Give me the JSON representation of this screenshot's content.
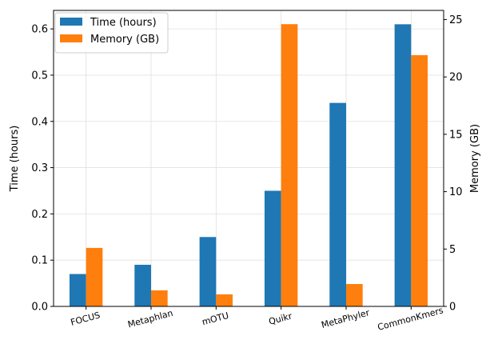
{
  "chart_data": {
    "type": "bar",
    "categories": [
      "FOCUS",
      "Metaphlan",
      "mOTU",
      "Quikr",
      "MetaPhyler",
      "CommonKmers"
    ],
    "series": [
      {
        "name": "Time (hours)",
        "axis": "left",
        "color": "#1f77b4",
        "values": [
          0.07,
          0.09,
          0.15,
          0.25,
          0.44,
          0.61
        ]
      },
      {
        "name": "Memory (GB)",
        "axis": "right",
        "color": "#ff7f0e",
        "values": [
          5.1,
          1.4,
          1.05,
          24.6,
          1.95,
          21.9
        ]
      }
    ],
    "ylabel": "Time (hours)",
    "y2label": "Memory (GB)",
    "ylim": [
      0,
      0.64
    ],
    "y2lim": [
      0,
      25.8
    ],
    "yticks": [
      "0.0",
      "0.1",
      "0.2",
      "0.3",
      "0.4",
      "0.5",
      "0.6"
    ],
    "y2ticks": [
      "0",
      "5",
      "10",
      "15",
      "20",
      "25"
    ],
    "grid": true,
    "legend_position": "top-left"
  }
}
